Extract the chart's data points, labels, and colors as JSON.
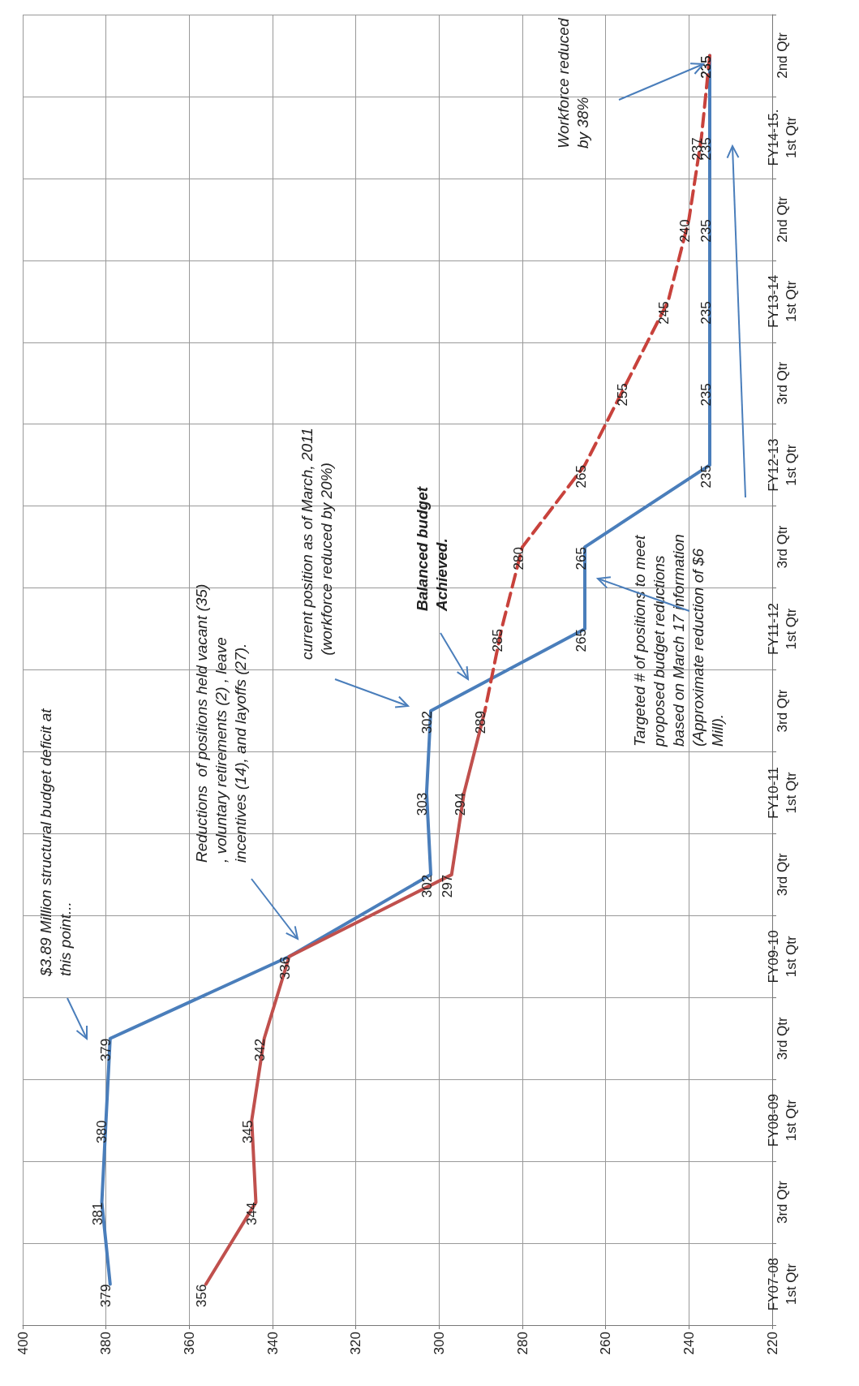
{
  "chart_data": {
    "type": "line",
    "orientation": "horizontal",
    "categories": [
      "2nd Qtr",
      "FY14-15.\n1st Qtr",
      "2nd Qtr",
      "FY13-14\n1st Qtr",
      "3rd Qtr",
      "FY12-13\n1st Qtr",
      "3rd Qtr",
      "FY11-12\n1st Qtr",
      "3rd Qtr",
      "FY10-11\n1st Qtr",
      "3rd Qtr",
      "FY09-10\n1st Qtr",
      "3rd Qtr",
      "FY08-09\n1st Qtr",
      "3rd Qtr",
      "FY07-08\n1st Qtr"
    ],
    "series": [
      {
        "color": "#4a7ebb",
        "values": [
          235,
          235,
          235,
          235,
          235,
          235,
          265,
          265,
          302,
          303,
          302,
          336,
          379,
          380,
          381,
          379
        ]
      },
      {
        "color": "#c0504d",
        "values": [
          null,
          null,
          null,
          null,
          null,
          null,
          null,
          null,
          289,
          294,
          297,
          336,
          342,
          345,
          344,
          356
        ],
        "value_labels": [
          null,
          null,
          null,
          null,
          null,
          null,
          null,
          null,
          "289",
          "294",
          "297",
          null,
          "342",
          "345",
          "344",
          "356"
        ]
      },
      {
        "color": "#c8423c",
        "line_style": "dashed",
        "values": [
          235,
          237,
          240,
          245,
          255,
          265,
          280,
          285,
          289,
          null,
          null,
          null,
          null,
          null,
          null,
          null
        ],
        "value_labels": [
          "235",
          "237",
          "240",
          "245",
          "255",
          "265",
          "280",
          "285",
          null,
          null,
          null,
          null,
          null,
          null,
          null,
          null
        ]
      }
    ],
    "xlim": [
      400,
      220
    ],
    "xticks": [
      400,
      380,
      360,
      340,
      320,
      300,
      280,
      260,
      240,
      220
    ],
    "grid": true,
    "data_labels": true,
    "marker": "none",
    "annotations": [
      "$3.89 Million structural budget deficit at this point...",
      "Reductions  of positions held vacant (35), voluntary retirements (2) , leave incentives (14), and layoffs (27).",
      "current position as of March, 2011 (workforce reduced by 20%)",
      "Balanced budget Achieved.",
      "Targeted # of positions to meet proposed budget reductions based on March 17 information (Approximate reduction of $6 Mill).",
      "Workforce reduced by 38%"
    ]
  }
}
